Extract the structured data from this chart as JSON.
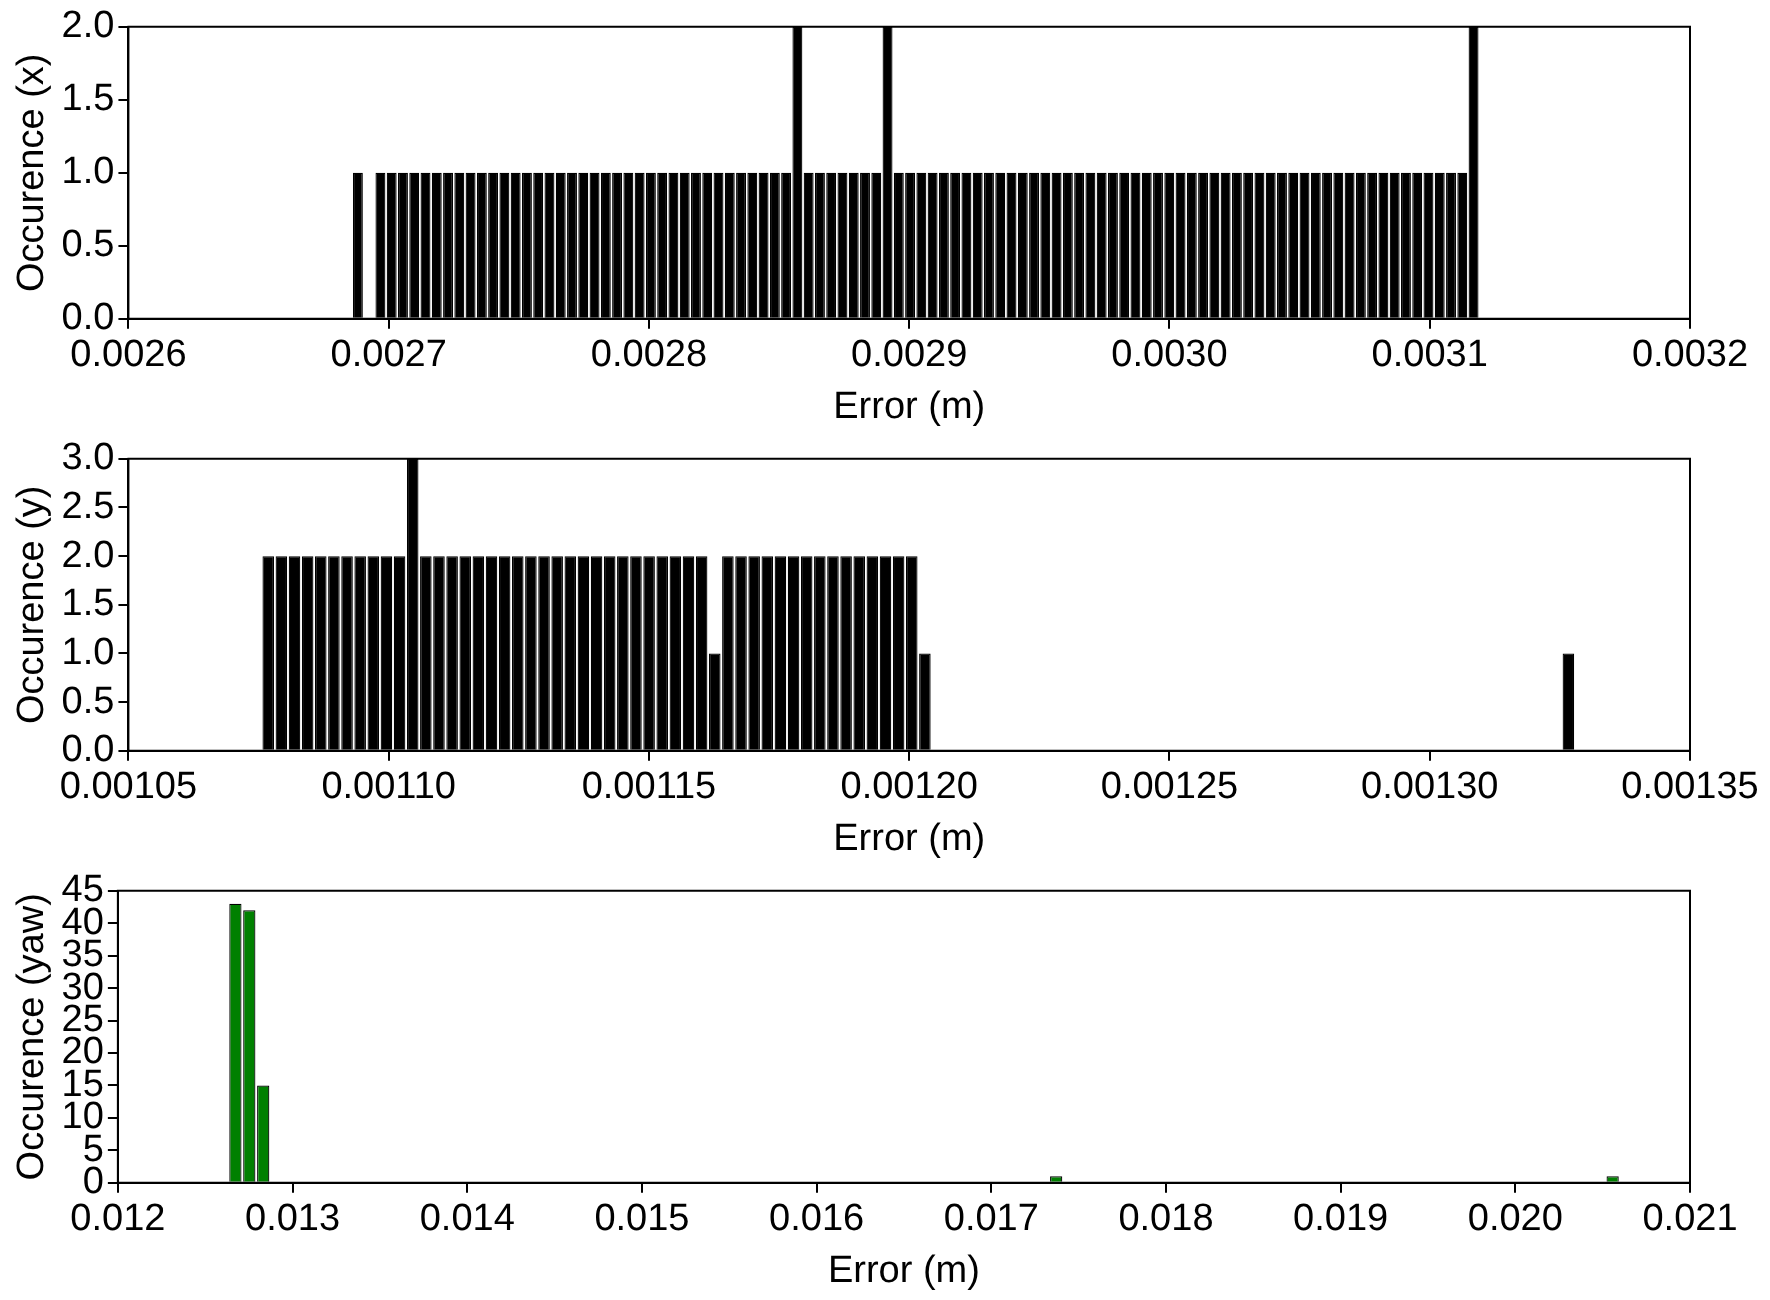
{
  "chart_data": [
    {
      "type": "histogram",
      "xlabel": "Error (m)",
      "ylabel": "Occurence (x)",
      "color": "#000000",
      "bins": [
        0.002686,
        0.00269033,
        0.00269466,
        0.00269899,
        0.00270332,
        0.00270765,
        0.00271198,
        0.00271631,
        0.00272064,
        0.00272497,
        0.0027293,
        0.00273363,
        0.00273796,
        0.00274229,
        0.00274662,
        0.00275095,
        0.00275528,
        0.00275961,
        0.00276394,
        0.00276827,
        0.0027726,
        0.00277693,
        0.00278126,
        0.00278559,
        0.00278992,
        0.00279425,
        0.00279858,
        0.00280291,
        0.00280724,
        0.00281157,
        0.0028159,
        0.00282023,
        0.00282456,
        0.00282889,
        0.00283322,
        0.00283755,
        0.00284188,
        0.00284621,
        0.00285054,
        0.00285487,
        0.0028592,
        0.00286353,
        0.00286786,
        0.00287219,
        0.00287652,
        0.00288085,
        0.00288518,
        0.00288951,
        0.00289384,
        0.00289817,
        0.0029025,
        0.00290683,
        0.00291116,
        0.00291549,
        0.00291982,
        0.00292415,
        0.00292848,
        0.00293281,
        0.00293714,
        0.00294147,
        0.0029458,
        0.00295013,
        0.00295446,
        0.00295879,
        0.00296312,
        0.00296745,
        0.00297178,
        0.00297611,
        0.00298044,
        0.00298477,
        0.0029891,
        0.00299343,
        0.00299776,
        0.00300209,
        0.00300642,
        0.00301075,
        0.00301508,
        0.00301941,
        0.00302374,
        0.00302807,
        0.0030324,
        0.00303673,
        0.00304106,
        0.00304539,
        0.00304972,
        0.00305405,
        0.00305838,
        0.00306271,
        0.00306704,
        0.00307137,
        0.0030757,
        0.00308003,
        0.00308436,
        0.00308869,
        0.00309302,
        0.00309735,
        0.00310168,
        0.00310601,
        0.00311034,
        0.00311467,
        0.003119
      ],
      "values": [
        1,
        0,
        1,
        1,
        1,
        1,
        1,
        1,
        1,
        1,
        1,
        1,
        1,
        1,
        1,
        1,
        1,
        1,
        1,
        1,
        1,
        1,
        1,
        1,
        1,
        1,
        1,
        1,
        1,
        1,
        1,
        1,
        1,
        1,
        1,
        1,
        1,
        1,
        1,
        2,
        1,
        1,
        1,
        1,
        1,
        1,
        1,
        2,
        1,
        1,
        1,
        1,
        1,
        1,
        1,
        1,
        1,
        1,
        1,
        1,
        1,
        1,
        1,
        1,
        1,
        1,
        1,
        1,
        1,
        1,
        1,
        1,
        1,
        1,
        1,
        1,
        1,
        1,
        1,
        1,
        1,
        1,
        1,
        1,
        1,
        1,
        1,
        1,
        1,
        1,
        1,
        1,
        1,
        1,
        1,
        1,
        1,
        1,
        1,
        2
      ],
      "xlim": [
        0.0026,
        0.0032
      ],
      "xticks": [
        0.0026,
        0.0027,
        0.0028,
        0.0029,
        {
          "value": 0.003,
          "label": "0.0030"
        },
        0.0031,
        0.0032
      ],
      "ylim": [
        0,
        2
      ],
      "yticks": [
        {
          "value": 0,
          "label": "0.0"
        },
        0.5,
        {
          "value": 1,
          "label": "1.0"
        },
        1.5,
        {
          "value": 2,
          "label": "2.0"
        }
      ]
    },
    {
      "type": "histogram",
      "xlabel": "Error (m)",
      "ylabel": "Occurence (y)",
      "color": "#000000",
      "bins": [
        0.0010756,
        0.001078123,
        0.001080646,
        0.001083169,
        0.001085692,
        0.001088215,
        0.001090738,
        0.001093261,
        0.001095784,
        0.001098307,
        0.00110083,
        0.001103353,
        0.001105876,
        0.001108399,
        0.001110922,
        0.001113445,
        0.001115968,
        0.001118491,
        0.001121014,
        0.001123537,
        0.00112606,
        0.001128583,
        0.001131106,
        0.001133629,
        0.001136152,
        0.001138675,
        0.001141198,
        0.001143721,
        0.001146244,
        0.001148767,
        0.00115129,
        0.001153813,
        0.001156336,
        0.001158859,
        0.001161382,
        0.001163905,
        0.001166428,
        0.001168951,
        0.001171474,
        0.001173997,
        0.00117652,
        0.001179043,
        0.001181566,
        0.001184089,
        0.001186612,
        0.001189135,
        0.001191658,
        0.001194181,
        0.001196704,
        0.001199227,
        0.00120175,
        0.001204273,
        0.001206796,
        0.001209319,
        0.001211842,
        0.001214365,
        0.001216888,
        0.001219411,
        0.001221934,
        0.001224457,
        0.00122698,
        0.001229503,
        0.001232026,
        0.001234549,
        0.001237072,
        0.001239595,
        0.001242118,
        0.001244641,
        0.001247164,
        0.001249687,
        0.00125221,
        0.001254733,
        0.001257256,
        0.001259779,
        0.001262302,
        0.001264825,
        0.001267348,
        0.001269871,
        0.001272394,
        0.001274917,
        0.00127744,
        0.001279963,
        0.001282486,
        0.001285009,
        0.001287532,
        0.001290055,
        0.001292578,
        0.001295101,
        0.001297624,
        0.001300147,
        0.00130267,
        0.001305193,
        0.001307716,
        0.001310239,
        0.001312762,
        0.001315285,
        0.001317808,
        0.001320331,
        0.001322854,
        0.001325377,
        0.0013279
      ],
      "values": [
        2,
        2,
        2,
        2,
        2,
        2,
        2,
        2,
        2,
        2,
        2,
        3,
        2,
        2,
        2,
        2,
        2,
        2,
        2,
        2,
        2,
        2,
        2,
        2,
        2,
        2,
        2,
        2,
        2,
        2,
        2,
        2,
        2,
        2,
        1,
        2,
        2,
        2,
        2,
        2,
        2,
        2,
        2,
        2,
        2,
        2,
        2,
        2,
        2,
        2,
        1,
        0,
        0,
        0,
        0,
        0,
        0,
        0,
        0,
        0,
        0,
        0,
        0,
        0,
        0,
        0,
        0,
        0,
        0,
        0,
        0,
        0,
        0,
        0,
        0,
        0,
        0,
        0,
        0,
        0,
        0,
        0,
        0,
        0,
        0,
        0,
        0,
        0,
        0,
        0,
        0,
        0,
        0,
        0,
        0,
        0,
        0,
        0,
        0,
        1
      ],
      "xlim": [
        0.00105,
        0.00135
      ],
      "xticks": [
        0.00105,
        {
          "value": 0.0011,
          "label": "0.00110"
        },
        0.00115,
        {
          "value": 0.0012,
          "label": "0.00120"
        },
        0.00125,
        {
          "value": 0.0013,
          "label": "0.00130"
        },
        0.00135
      ],
      "ylim": [
        0,
        3
      ],
      "yticks": [
        {
          "value": 0,
          "label": "0.0"
        },
        0.5,
        {
          "value": 1,
          "label": "1.0"
        },
        1.5,
        {
          "value": 2,
          "label": "2.0"
        },
        2.5,
        {
          "value": 3,
          "label": "3.0"
        }
      ]
    },
    {
      "type": "histogram",
      "xlabel": "Error (m)",
      "ylabel": "Occurence (yaw)",
      "color": "#008000",
      "bins": [
        0.012633,
        0.01271264,
        0.01279228,
        0.01287192,
        0.01295156,
        0.0130312,
        0.01311084,
        0.01319048,
        0.01327012,
        0.01334976,
        0.0134294,
        0.01350904,
        0.01358868,
        0.01366832,
        0.01374796,
        0.0138276,
        0.01390724,
        0.01398688,
        0.01406652,
        0.01414616,
        0.0142258,
        0.01430544,
        0.01438508,
        0.01446472,
        0.01454436,
        0.014624,
        0.01470364,
        0.01478328,
        0.01486292,
        0.01494256,
        0.0150222,
        0.01510184,
        0.01518148,
        0.01526112,
        0.01534076,
        0.0154204,
        0.01550004,
        0.01557968,
        0.01565932,
        0.01573896,
        0.0158186,
        0.01589824,
        0.01597788,
        0.01605752,
        0.01613716,
        0.0162168,
        0.01629644,
        0.01637608,
        0.01645572,
        0.01653536,
        0.016615,
        0.01669464,
        0.01677428,
        0.01685392,
        0.01693356,
        0.0170132,
        0.01709284,
        0.01717248,
        0.01725212,
        0.01733176,
        0.0174114,
        0.01749104,
        0.01757068,
        0.01765032,
        0.01772996,
        0.0178096,
        0.01788924,
        0.01796888,
        0.01804852,
        0.01812816,
        0.0182078,
        0.01828744,
        0.01836708,
        0.01844672,
        0.01852636,
        0.018606,
        0.01868564,
        0.01876528,
        0.01884492,
        0.01892456,
        0.0190042,
        0.01908384,
        0.01916348,
        0.01924312,
        0.01932276,
        0.0194024,
        0.01948204,
        0.01956168,
        0.01964132,
        0.01972096,
        0.0198006,
        0.01988024,
        0.01995988,
        0.02003952,
        0.02011916,
        0.0201988,
        0.02027844,
        0.02035808,
        0.02043772,
        0.02051736,
        0.020597
      ],
      "values": [
        43,
        42,
        15,
        0,
        0,
        0,
        0,
        0,
        0,
        0,
        0,
        0,
        0,
        0,
        0,
        0,
        0,
        0,
        0,
        0,
        0,
        0,
        0,
        0,
        0,
        0,
        0,
        0,
        0,
        0,
        0,
        0,
        0,
        0,
        0,
        0,
        0,
        0,
        0,
        0,
        0,
        0,
        0,
        0,
        0,
        0,
        0,
        0,
        0,
        0,
        0,
        0,
        0,
        0,
        0,
        0,
        0,
        0,
        0,
        1,
        0,
        0,
        0,
        0,
        0,
        0,
        0,
        0,
        0,
        0,
        0,
        0,
        0,
        0,
        0,
        0,
        0,
        0,
        0,
        0,
        0,
        0,
        0,
        0,
        0,
        0,
        0,
        0,
        0,
        0,
        0,
        0,
        0,
        0,
        0,
        0,
        0,
        0,
        0,
        1
      ],
      "xlim": [
        0.012,
        0.021
      ],
      "xticks": [
        0.012,
        0.013,
        0.014,
        0.015,
        0.016,
        0.017,
        0.018,
        0.019,
        {
          "value": 0.02,
          "label": "0.020"
        },
        0.021
      ],
      "ylim": [
        0,
        45
      ],
      "yticks": [
        0,
        5,
        10,
        15,
        20,
        25,
        30,
        35,
        40,
        45
      ]
    }
  ]
}
